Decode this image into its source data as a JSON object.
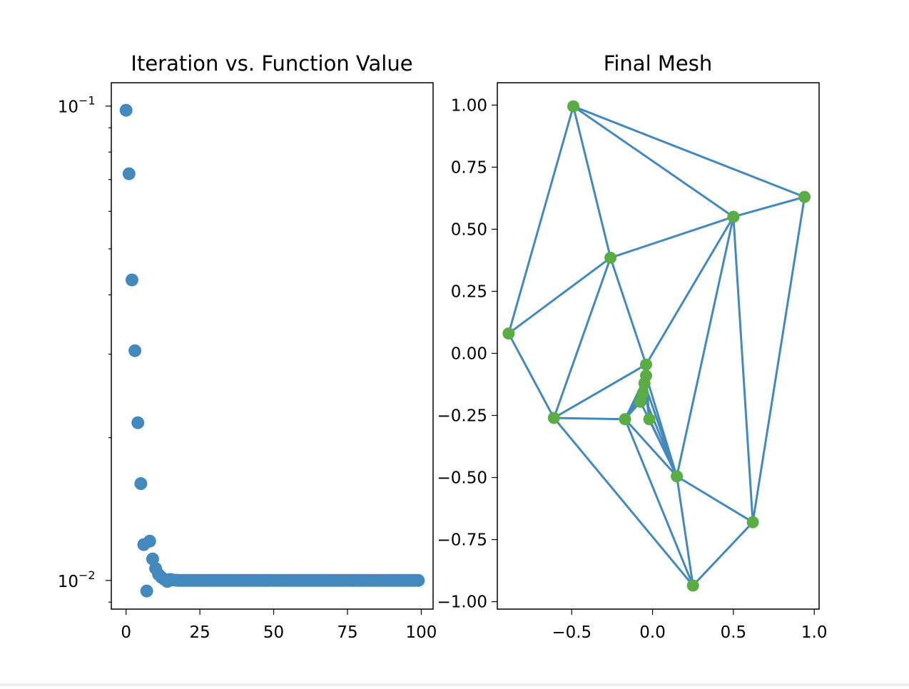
{
  "chart_data": [
    {
      "type": "scatter",
      "title": "Iteration vs. Function Value",
      "xlabel": "",
      "ylabel": "",
      "yscale": "log",
      "xlim": [
        -5,
        104
      ],
      "ylim": [
        0.0087,
        0.112
      ],
      "xticks": [
        0,
        25,
        50,
        75,
        100
      ],
      "xtick_labels": [
        "0",
        "25",
        "50",
        "75",
        "100"
      ],
      "yticks_major": [
        0.1,
        0.01
      ],
      "ytick_labels": [
        {
          "base": "10",
          "exp": "−1"
        },
        {
          "base": "10",
          "exp": "−2"
        }
      ],
      "color": "#4389be",
      "x": [
        0,
        1,
        2,
        3,
        4,
        5,
        6,
        7,
        8,
        9,
        10,
        11,
        12,
        13,
        14,
        15,
        16,
        17,
        18,
        19,
        20,
        21,
        22,
        23,
        24,
        25,
        26,
        27,
        28,
        29,
        30,
        31,
        32,
        33,
        34,
        35,
        36,
        37,
        38,
        39,
        40,
        41,
        42,
        43,
        44,
        45,
        46,
        47,
        48,
        49,
        50,
        51,
        52,
        53,
        54,
        55,
        56,
        57,
        58,
        59,
        60,
        61,
        62,
        63,
        64,
        65,
        66,
        67,
        68,
        69,
        70,
        71,
        72,
        73,
        74,
        75,
        76,
        77,
        78,
        79,
        80,
        81,
        82,
        83,
        84,
        85,
        86,
        87,
        88,
        89,
        90,
        91,
        92,
        93,
        94,
        95,
        96,
        97,
        98,
        99
      ],
      "y": [
        0.098,
        0.072,
        0.043,
        0.0305,
        0.0215,
        0.016,
        0.0119,
        0.0095,
        0.0121,
        0.0111,
        0.0106,
        0.0103,
        0.01015,
        0.01005,
        0.00995,
        0.01005,
        0.01002,
        0.01001,
        0.01,
        0.01,
        0.01,
        0.01,
        0.01,
        0.01,
        0.01,
        0.01,
        0.01,
        0.01,
        0.01,
        0.01,
        0.01,
        0.01,
        0.01,
        0.01,
        0.01,
        0.01,
        0.01,
        0.01,
        0.01,
        0.01,
        0.01,
        0.01,
        0.01,
        0.01,
        0.01,
        0.01,
        0.01,
        0.01,
        0.01,
        0.01,
        0.01,
        0.01,
        0.01,
        0.01,
        0.01,
        0.01,
        0.01,
        0.01,
        0.01,
        0.01,
        0.01,
        0.01,
        0.01,
        0.01,
        0.01,
        0.01,
        0.01,
        0.01,
        0.01,
        0.01,
        0.01,
        0.01,
        0.01,
        0.01,
        0.01,
        0.01,
        0.01,
        0.01,
        0.01,
        0.01,
        0.01,
        0.01,
        0.01,
        0.01,
        0.01,
        0.01,
        0.01,
        0.01,
        0.01,
        0.01,
        0.01,
        0.01,
        0.01,
        0.01,
        0.01,
        0.01,
        0.01,
        0.01,
        0.01,
        0.01
      ]
    },
    {
      "type": "mesh",
      "title": "Final Mesh",
      "xlabel": "",
      "ylabel": "",
      "xlim": [
        -0.96,
        1.03
      ],
      "ylim": [
        -1.03,
        1.09
      ],
      "xticks": [
        -0.5,
        0.0,
        0.5,
        1.0
      ],
      "xtick_labels": [
        "−0.5",
        "0.0",
        "0.5",
        "1.0"
      ],
      "yticks": [
        1.0,
        0.75,
        0.5,
        0.25,
        0.0,
        -0.25,
        -0.5,
        -0.75,
        -1.0
      ],
      "ytick_labels": [
        "1.00",
        "0.75",
        "0.50",
        "0.25",
        "0.00",
        "−0.25",
        "−0.50",
        "−0.75",
        "−1.00"
      ],
      "edge_color": "#4389be",
      "node_color": "#5aac44",
      "nodes": [
        [
          -0.49,
          0.995
        ],
        [
          0.94,
          0.63
        ],
        [
          0.5,
          0.55
        ],
        [
          -0.26,
          0.385
        ],
        [
          -0.89,
          0.08
        ],
        [
          -0.04,
          -0.045
        ],
        [
          -0.04,
          -0.09
        ],
        [
          -0.05,
          -0.12
        ],
        [
          -0.06,
          -0.16
        ],
        [
          -0.075,
          -0.195
        ],
        [
          -0.61,
          -0.26
        ],
        [
          -0.17,
          -0.265
        ],
        [
          -0.02,
          -0.265
        ],
        [
          0.15,
          -0.495
        ],
        [
          0.62,
          -0.68
        ],
        [
          0.25,
          -0.935
        ]
      ],
      "edges": [
        [
          0,
          1
        ],
        [
          0,
          2
        ],
        [
          0,
          3
        ],
        [
          0,
          4
        ],
        [
          1,
          2
        ],
        [
          1,
          14
        ],
        [
          2,
          3
        ],
        [
          2,
          5
        ],
        [
          2,
          13
        ],
        [
          2,
          14
        ],
        [
          3,
          4
        ],
        [
          3,
          10
        ],
        [
          3,
          5
        ],
        [
          4,
          10
        ],
        [
          10,
          5
        ],
        [
          10,
          11
        ],
        [
          10,
          15
        ],
        [
          11,
          6
        ],
        [
          11,
          7
        ],
        [
          11,
          8
        ],
        [
          11,
          9
        ],
        [
          11,
          13
        ],
        [
          11,
          15
        ],
        [
          6,
          13
        ],
        [
          7,
          13
        ],
        [
          8,
          13
        ],
        [
          9,
          13
        ],
        [
          12,
          13
        ],
        [
          5,
          6
        ],
        [
          6,
          7
        ],
        [
          7,
          8
        ],
        [
          8,
          9
        ],
        [
          6,
          12
        ],
        [
          7,
          12
        ],
        [
          13,
          14
        ],
        [
          13,
          15
        ],
        [
          14,
          15
        ]
      ]
    }
  ]
}
